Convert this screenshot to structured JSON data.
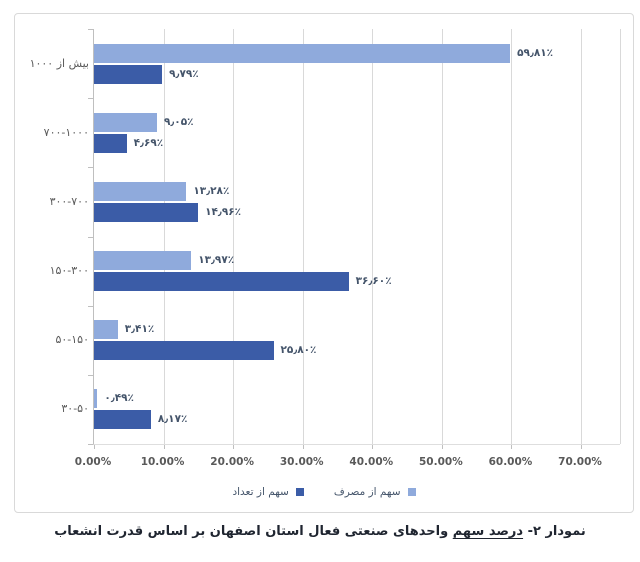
{
  "chart_data": {
    "type": "bar",
    "orientation": "horizontal",
    "categories": [
      "بیش از ۱۰۰۰",
      "۷۰۰-۱۰۰۰",
      "۳۰۰-۷۰۰",
      "۱۵۰-۳۰۰",
      "۵۰-۱۵۰",
      "۳۰-۵۰"
    ],
    "series": [
      {
        "id": "consumption",
        "name": "سهم از مصرف",
        "color": "#8FAADC",
        "values": [
          59.81,
          9.05,
          13.28,
          13.97,
          3.41,
          0.49
        ],
        "labels": [
          "۵۹٫۸۱٪",
          "۹٫۰۵٪",
          "۱۳٫۲۸٪",
          "۱۳٫۹۷٪",
          "۳٫۴۱٪",
          "۰٫۴۹٪"
        ]
      },
      {
        "id": "count",
        "name": "سهم از تعداد",
        "color": "#3B5CA7",
        "values": [
          9.79,
          4.69,
          14.96,
          36.6,
          25.8,
          8.17
        ],
        "labels": [
          "۹٫۷۹٪",
          "۴٫۶۹٪",
          "۱۴٫۹۶٪",
          "۳۶٫۶۰٪",
          "۲۵٫۸۰٪",
          "۸٫۱۷٪"
        ]
      }
    ],
    "x_ticks": [
      "0.00%",
      "10.00%",
      "20.00%",
      "30.00%",
      "40.00%",
      "50.00%",
      "60.00%",
      "70.00%"
    ],
    "x_tick_values": [
      0,
      10,
      20,
      30,
      40,
      50,
      60,
      70
    ],
    "xlim": [
      0,
      75.6
    ],
    "grid": true,
    "legend_position": "bottom",
    "title": "نمودار ۲- درصد سهم واحدهای صنعتی فعال استان اصفهان بر اساس قدرت انشعاب"
  },
  "caption": {
    "prefix": "نمودار ۲- ",
    "underlined": "درصد سهم",
    "rest": " واحدهای صنعتی فعال استان اصفهان بر اساس قدرت انشعاب"
  },
  "colors": {
    "bar_light": "#8FAADC",
    "bar_dark": "#3B5CA7",
    "gridline": "#D9D9D9",
    "axis_line": "#BFBFBF",
    "data_label": "#44546A",
    "tick_label": "#595959",
    "card_border": "#D9D9D9"
  }
}
